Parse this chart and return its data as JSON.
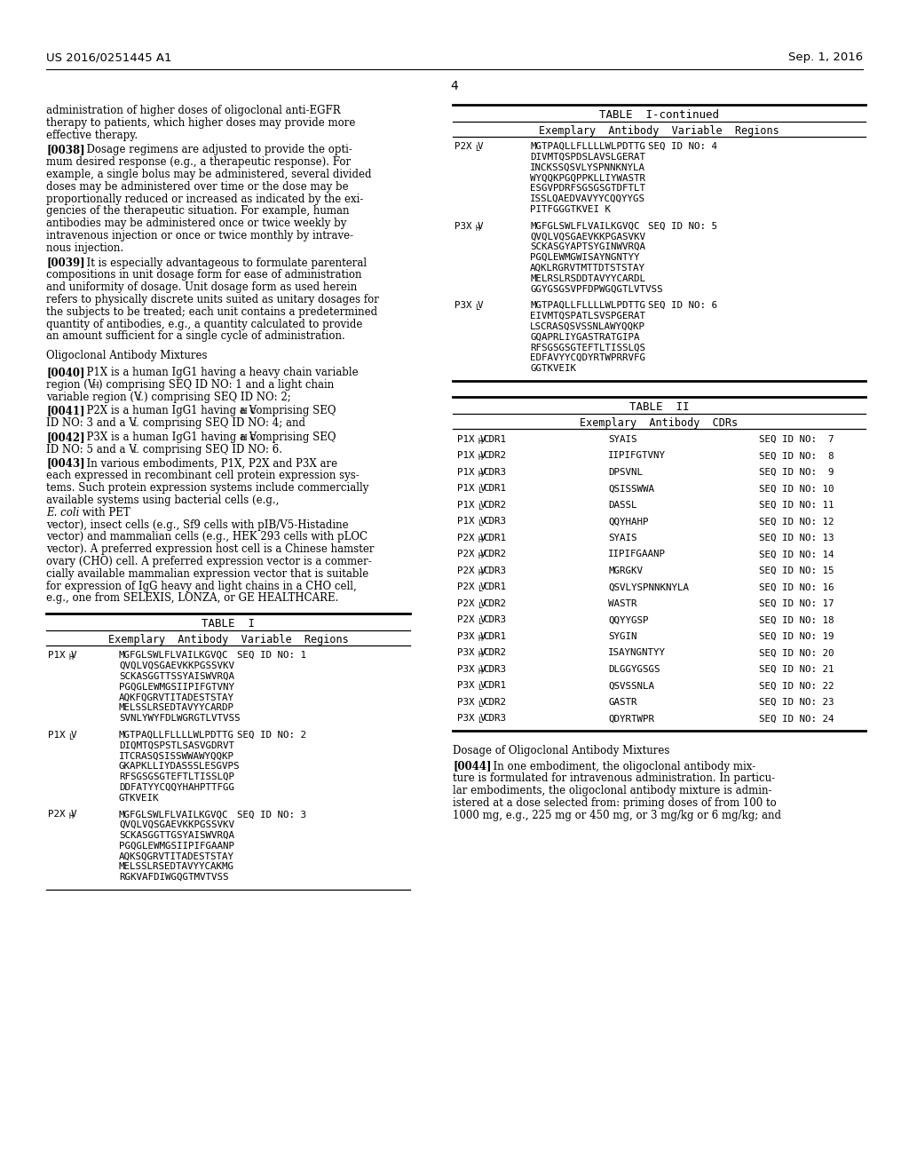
{
  "header_left": "US 2016/0251445 A1",
  "header_right": "Sep. 1, 2016",
  "page_number": "4",
  "background": "#ffffff",
  "table2_entries": [
    {
      "label_pre": "P1X V",
      "sub": "H",
      "label_post": "CDR1",
      "seq": "SYAIS",
      "id": "SEQ ID NO:  7"
    },
    {
      "label_pre": "P1X V",
      "sub": "H",
      "label_post": "CDR2",
      "seq": "IIPIFGTVNY",
      "id": "SEQ ID NO:  8"
    },
    {
      "label_pre": "P1X V",
      "sub": "H",
      "label_post": "CDR3",
      "seq": "DPSVNL",
      "id": "SEQ ID NO:  9"
    },
    {
      "label_pre": "P1X V",
      "sub": "L",
      "label_post": "CDR1",
      "seq": "QSISSWWA",
      "id": "SEQ ID NO: 10"
    },
    {
      "label_pre": "P1X V",
      "sub": "L",
      "label_post": "CDR2",
      "seq": "DASSL",
      "id": "SEQ ID NO: 11"
    },
    {
      "label_pre": "P1X V",
      "sub": "L",
      "label_post": "CDR3",
      "seq": "QQYHAHP",
      "id": "SEQ ID NO: 12"
    },
    {
      "label_pre": "P2X V",
      "sub": "H",
      "label_post": "CDR1",
      "seq": "SYAIS",
      "id": "SEQ ID NO: 13"
    },
    {
      "label_pre": "P2X V",
      "sub": "H",
      "label_post": "CDR2",
      "seq": "IIPIFGAANP",
      "id": "SEQ ID NO: 14"
    },
    {
      "label_pre": "P2X V",
      "sub": "H",
      "label_post": "CDR3",
      "seq": "MGRGKV",
      "id": "SEQ ID NO: 15"
    },
    {
      "label_pre": "P2X V",
      "sub": "L",
      "label_post": "CDR1",
      "seq": "QSVLYSPNNKNYLA",
      "id": "SEQ ID NO: 16"
    },
    {
      "label_pre": "P2X V",
      "sub": "L",
      "label_post": "CDR2",
      "seq": "WASTR",
      "id": "SEQ ID NO: 17"
    },
    {
      "label_pre": "P2X V",
      "sub": "L",
      "label_post": "CDR3",
      "seq": "QQYYGSP",
      "id": "SEQ ID NO: 18"
    },
    {
      "label_pre": "P3X V",
      "sub": "H",
      "label_post": "CDR1",
      "seq": "SYGIN",
      "id": "SEQ ID NO: 19"
    },
    {
      "label_pre": "P3X V",
      "sub": "H",
      "label_post": "CDR2",
      "seq": "ISAYNGNTYY",
      "id": "SEQ ID NO: 20"
    },
    {
      "label_pre": "P3X V",
      "sub": "H",
      "label_post": "CDR3",
      "seq": "DLGGYGSGS",
      "id": "SEQ ID NO: 21"
    },
    {
      "label_pre": "P3X V",
      "sub": "L",
      "label_post": "CDR1",
      "seq": "QSVSSNLA",
      "id": "SEQ ID NO: 22"
    },
    {
      "label_pre": "P3X V",
      "sub": "L",
      "label_post": "CDR2",
      "seq": "GASTR",
      "id": "SEQ ID NO: 23"
    },
    {
      "label_pre": "P3X V",
      "sub": "L",
      "label_post": "CDR3",
      "seq": "QDYRTWPR",
      "id": "SEQ ID NO: 24"
    }
  ]
}
